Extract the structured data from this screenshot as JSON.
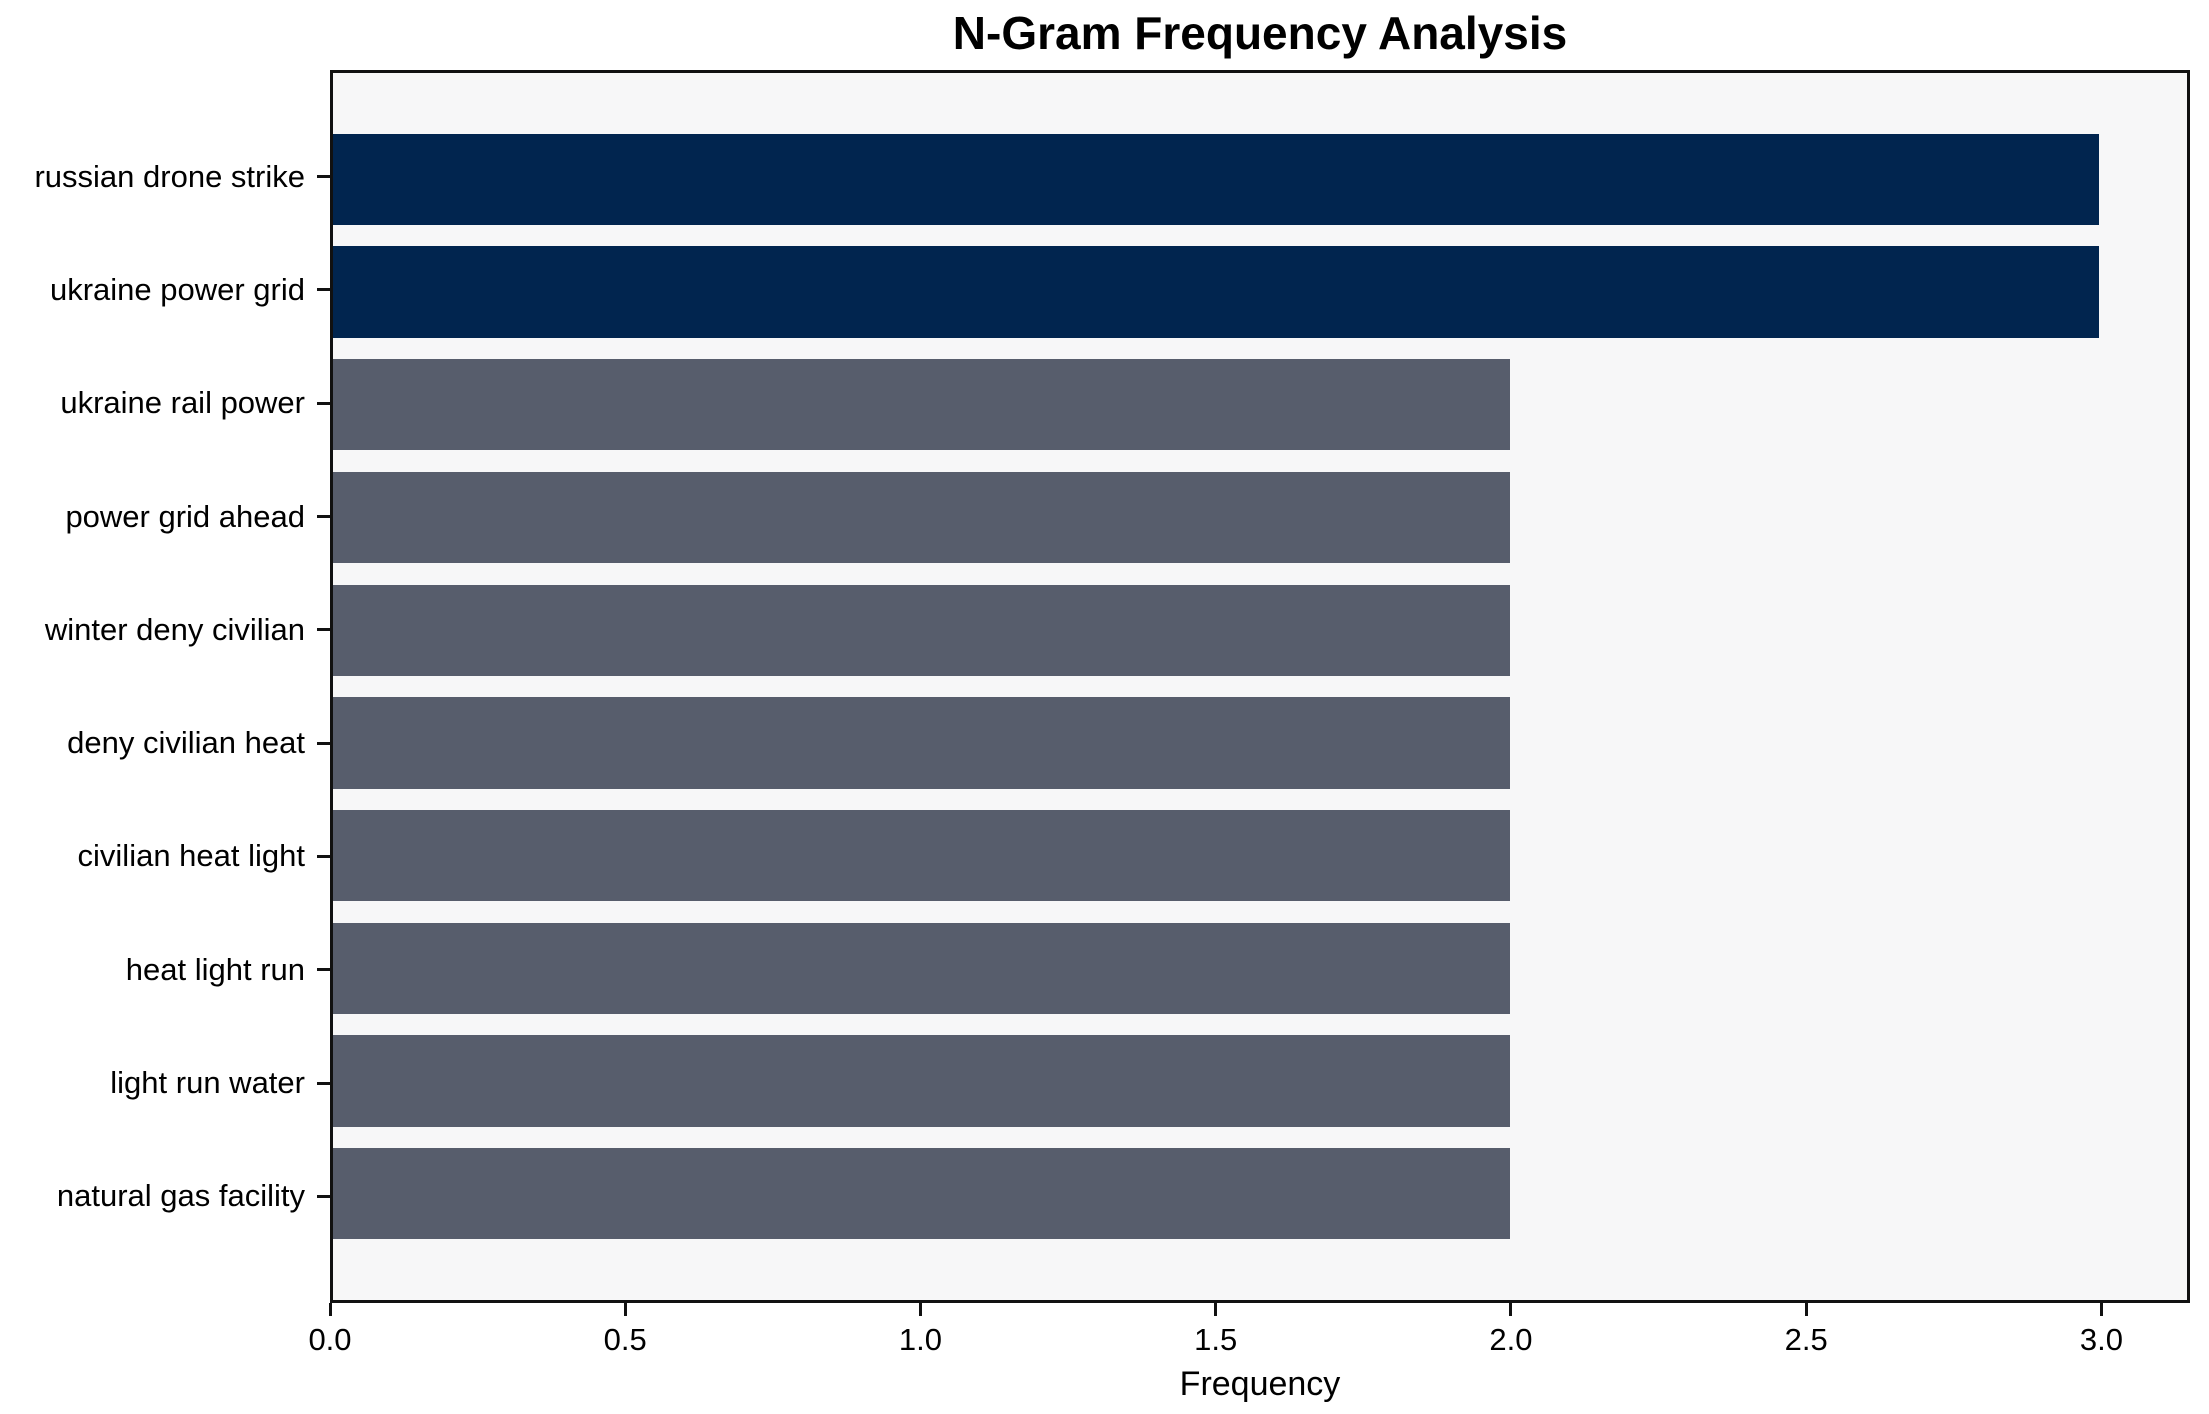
{
  "chart_data": {
    "type": "bar",
    "orientation": "horizontal",
    "title": "N-Gram Frequency Analysis",
    "xlabel": "Frequency",
    "ylabel": "",
    "categories": [
      "russian drone strike",
      "ukraine power grid",
      "ukraine rail power",
      "power grid ahead",
      "winter deny civilian",
      "deny civilian heat",
      "civilian heat light",
      "heat light run",
      "light run water",
      "natural gas facility"
    ],
    "values": [
      3,
      3,
      2,
      2,
      2,
      2,
      2,
      2,
      2,
      2
    ],
    "bar_colors": [
      "#01254F",
      "#01254F",
      "#575D6C",
      "#575D6C",
      "#575D6C",
      "#575D6C",
      "#575D6C",
      "#575D6C",
      "#575D6C",
      "#575D6C"
    ],
    "x_ticks": [
      0,
      0.5,
      1,
      1.5,
      2,
      2.5,
      3
    ],
    "x_tick_labels": [
      "0.0",
      "0.5",
      "1.0",
      "1.5",
      "2.0",
      "2.5",
      "3.0"
    ],
    "xlim": [
      0,
      3.15
    ],
    "grid": false,
    "legend": null,
    "bar_height_fraction": 0.8,
    "colors": {
      "highlight_bar": "#01254F",
      "default_bar": "#575D6C",
      "axes_background": "#F7F7F8",
      "figure_background": "#FFFFFF",
      "spine": "#111111",
      "text": "#000000"
    }
  }
}
